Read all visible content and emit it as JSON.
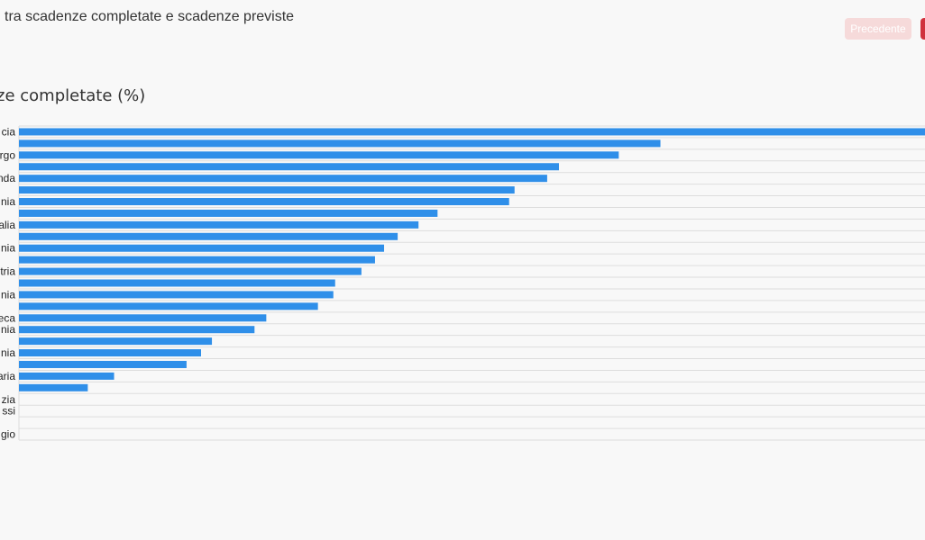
{
  "header": {
    "subtitle": " tra scadenze completate e scadenze previste",
    "prev_label": "Precedente",
    "next_label": ""
  },
  "colors": {
    "bar": "#2f8fe9",
    "grid": "#dddddd",
    "prev_button_bg": "#f6dada",
    "next_button_bg": "#d0323d"
  },
  "chart_data": {
    "type": "bar",
    "orientation": "horizontal",
    "title": "ze completate (%)",
    "xlim": [
      0,
      100
    ],
    "grid": true,
    "categories": [
      "cia",
      "",
      "rgo",
      "",
      "nda",
      "",
      "nia",
      "",
      "alia",
      "",
      "nia",
      "",
      "tria",
      "",
      "nia",
      "",
      "eca",
      "nia",
      "",
      "nia",
      "",
      "aria",
      "",
      "zia",
      "ssi",
      "",
      "gio"
    ],
    "values": [
      100,
      70.8,
      66.2,
      59.6,
      58.3,
      54.7,
      54.1,
      46.2,
      44.1,
      41.8,
      40.3,
      39.3,
      37.8,
      34.9,
      34.7,
      33.0,
      27.3,
      26.0,
      21.3,
      20.1,
      18.5,
      10.5,
      7.6,
      0,
      0,
      0,
      0
    ]
  }
}
